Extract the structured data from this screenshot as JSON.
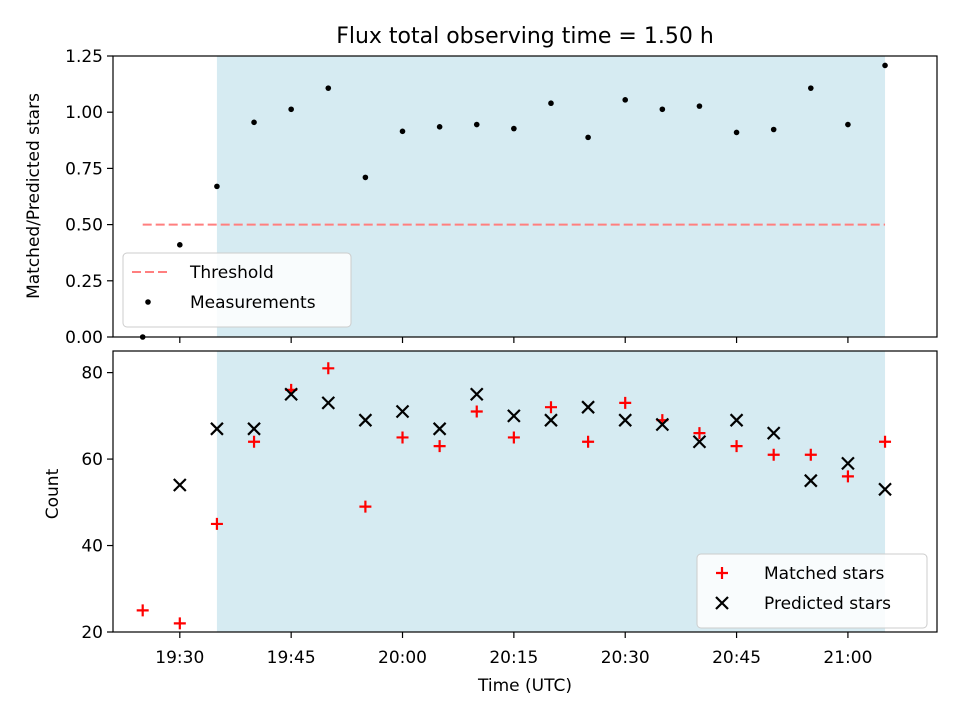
{
  "chart_data": [
    {
      "type": "scatter",
      "title": "Flux total observing time = 1.50 h",
      "xlabel": "",
      "ylabel": "Matched/Predicted stars",
      "ylim": [
        0,
        1.25
      ],
      "yticks": [
        "0.00",
        "0.25",
        "0.50",
        "0.75",
        "1.00",
        "1.25"
      ],
      "shaded_span": [
        "19:35",
        "21:05"
      ],
      "shade_color": "#add8e6",
      "legend_position": "lower-left",
      "series": [
        {
          "name": "Threshold",
          "kind": "line",
          "style": "dashed",
          "color": "#ff7f7f",
          "x": [
            "19:25",
            "21:05"
          ],
          "y": [
            0.5,
            0.5
          ]
        },
        {
          "name": "Measurements",
          "kind": "points",
          "color": "#000000",
          "x": [
            "19:25",
            "19:30",
            "19:35",
            "19:40",
            "19:45",
            "19:50",
            "19:55",
            "20:00",
            "20:05",
            "20:10",
            "20:15",
            "20:20",
            "20:25",
            "20:30",
            "20:35",
            "20:40",
            "20:45",
            "20:50",
            "20:55",
            "21:00",
            "21:05"
          ],
          "y": [
            0.0,
            0.41,
            0.67,
            0.955,
            1.013,
            1.107,
            0.71,
            0.915,
            0.935,
            0.945,
            0.927,
            1.04,
            0.888,
            1.055,
            1.013,
            1.027,
            0.91,
            0.923,
            1.107,
            0.945,
            1.208
          ]
        }
      ]
    },
    {
      "type": "scatter",
      "xlabel": "Time (UTC)",
      "ylabel": "Count",
      "ylim": [
        20,
        85
      ],
      "yticks": [
        "20",
        "40",
        "60",
        "80"
      ],
      "xticks": [
        "19:30",
        "19:45",
        "20:00",
        "20:15",
        "20:30",
        "20:45",
        "21:00"
      ],
      "shaded_span": [
        "19:35",
        "21:05"
      ],
      "shade_color": "#add8e6",
      "legend_position": "lower-right",
      "series": [
        {
          "name": "Matched stars",
          "kind": "plus",
          "color": "#ff0000",
          "x": [
            "19:25",
            "19:30",
            "19:35",
            "19:40",
            "19:45",
            "19:50",
            "19:55",
            "20:00",
            "20:05",
            "20:10",
            "20:15",
            "20:20",
            "20:25",
            "20:30",
            "20:35",
            "20:40",
            "20:45",
            "20:50",
            "20:55",
            "21:00",
            "21:05"
          ],
          "y": [
            25,
            22,
            45,
            64,
            76,
            81,
            49,
            65,
            63,
            71,
            65,
            72,
            64,
            73,
            69,
            66,
            63,
            61,
            61,
            56,
            64
          ]
        },
        {
          "name": "Predicted stars",
          "kind": "cross",
          "color": "#000000",
          "x": [
            "19:30",
            "19:35",
            "19:40",
            "19:45",
            "19:50",
            "19:55",
            "20:00",
            "20:05",
            "20:10",
            "20:15",
            "20:20",
            "20:25",
            "20:30",
            "20:35",
            "20:40",
            "20:45",
            "20:50",
            "20:55",
            "21:00",
            "21:05"
          ],
          "y": [
            54,
            67,
            67,
            75,
            73,
            69,
            71,
            67,
            75,
            70,
            69,
            72,
            69,
            68,
            64,
            69,
            66,
            55,
            59,
            53
          ]
        }
      ]
    }
  ]
}
